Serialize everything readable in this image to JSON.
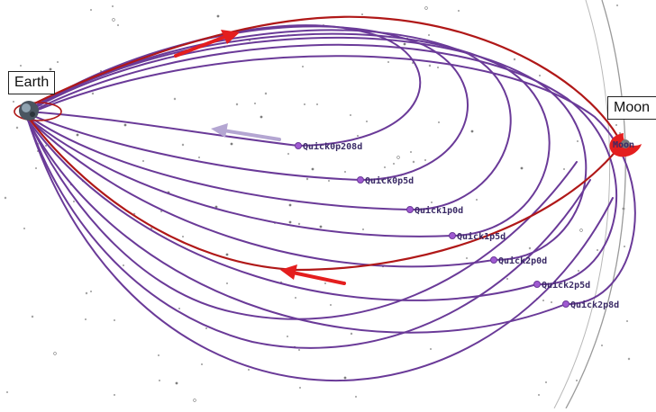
{
  "labels": {
    "earth": "Earth",
    "moon": "Moon"
  },
  "moon_marker_text": "Moon",
  "trajectories": [
    {
      "name": "Quick0p208d"
    },
    {
      "name": "Quick0p5d"
    },
    {
      "name": "Quick1p0d"
    },
    {
      "name": "Quick1p5d"
    },
    {
      "name": "Quick2p0d"
    },
    {
      "name": "Quick2p5d"
    },
    {
      "name": "Quick2p8d"
    }
  ],
  "colors": {
    "trajectory": "#6a3a98",
    "transfer": "#b01818",
    "arrow_red": "#e41e1e",
    "arrow_lilac": "#b4a6d2",
    "moon_orbit": "#9a9a9a",
    "stars": "#888888"
  },
  "icons": {
    "earth": "earth-globe-icon",
    "moon": "moon-marker-icon",
    "waypoint": "waypoint-dot-icon"
  }
}
